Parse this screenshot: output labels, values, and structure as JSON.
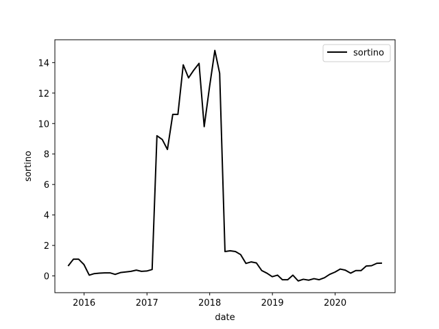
{
  "chart_data": {
    "type": "line",
    "xlabel": "date",
    "ylabel": "sortino",
    "xlim": [
      "2015-07-15",
      "2020-12-15"
    ],
    "ylim": [
      -1.1,
      15.5
    ],
    "xticks": [
      {
        "date": "2016-01-01",
        "label": "2016"
      },
      {
        "date": "2017-01-01",
        "label": "2017"
      },
      {
        "date": "2018-01-01",
        "label": "2018"
      },
      {
        "date": "2019-01-01",
        "label": "2019"
      },
      {
        "date": "2020-01-01",
        "label": "2020"
      }
    ],
    "yticks": [
      0,
      2,
      4,
      6,
      8,
      10,
      12,
      14
    ],
    "grid": false,
    "legend_position": "top-right",
    "line_color": "#000000",
    "series": [
      {
        "name": "sortino",
        "points": [
          {
            "x": "2015-09-30",
            "y": 0.65
          },
          {
            "x": "2015-10-31",
            "y": 1.1
          },
          {
            "x": "2015-11-30",
            "y": 1.1
          },
          {
            "x": "2015-12-31",
            "y": 0.75
          },
          {
            "x": "2016-01-31",
            "y": 0.05
          },
          {
            "x": "2016-02-29",
            "y": 0.15
          },
          {
            "x": "2016-03-31",
            "y": 0.18
          },
          {
            "x": "2016-04-30",
            "y": 0.2
          },
          {
            "x": "2016-05-31",
            "y": 0.2
          },
          {
            "x": "2016-06-30",
            "y": 0.1
          },
          {
            "x": "2016-07-31",
            "y": 0.22
          },
          {
            "x": "2016-08-31",
            "y": 0.26
          },
          {
            "x": "2016-09-30",
            "y": 0.3
          },
          {
            "x": "2016-10-31",
            "y": 0.38
          },
          {
            "x": "2016-11-30",
            "y": 0.3
          },
          {
            "x": "2016-12-31",
            "y": 0.32
          },
          {
            "x": "2017-01-31",
            "y": 0.42
          },
          {
            "x": "2017-02-28",
            "y": 9.2
          },
          {
            "x": "2017-03-31",
            "y": 8.95
          },
          {
            "x": "2017-04-30",
            "y": 8.3
          },
          {
            "x": "2017-05-31",
            "y": 10.6
          },
          {
            "x": "2017-06-30",
            "y": 10.6
          },
          {
            "x": "2017-07-31",
            "y": 13.85
          },
          {
            "x": "2017-08-31",
            "y": 13.0
          },
          {
            "x": "2017-09-30",
            "y": 13.5
          },
          {
            "x": "2017-10-31",
            "y": 13.95
          },
          {
            "x": "2017-11-30",
            "y": 9.8
          },
          {
            "x": "2017-12-31",
            "y": 12.4
          },
          {
            "x": "2018-01-31",
            "y": 14.8
          },
          {
            "x": "2018-02-28",
            "y": 13.3
          },
          {
            "x": "2018-03-31",
            "y": 1.6
          },
          {
            "x": "2018-04-30",
            "y": 1.65
          },
          {
            "x": "2018-05-31",
            "y": 1.6
          },
          {
            "x": "2018-06-30",
            "y": 1.4
          },
          {
            "x": "2018-07-31",
            "y": 0.82
          },
          {
            "x": "2018-08-31",
            "y": 0.92
          },
          {
            "x": "2018-09-30",
            "y": 0.85
          },
          {
            "x": "2018-10-31",
            "y": 0.35
          },
          {
            "x": "2018-11-30",
            "y": 0.18
          },
          {
            "x": "2018-12-31",
            "y": -0.05
          },
          {
            "x": "2019-01-31",
            "y": 0.05
          },
          {
            "x": "2019-02-28",
            "y": -0.25
          },
          {
            "x": "2019-03-31",
            "y": -0.25
          },
          {
            "x": "2019-04-30",
            "y": 0.05
          },
          {
            "x": "2019-05-31",
            "y": -0.33
          },
          {
            "x": "2019-06-30",
            "y": -0.22
          },
          {
            "x": "2019-07-31",
            "y": -0.28
          },
          {
            "x": "2019-08-31",
            "y": -0.18
          },
          {
            "x": "2019-09-30",
            "y": -0.25
          },
          {
            "x": "2019-10-31",
            "y": -0.12
          },
          {
            "x": "2019-11-30",
            "y": 0.1
          },
          {
            "x": "2019-12-31",
            "y": 0.25
          },
          {
            "x": "2020-01-31",
            "y": 0.45
          },
          {
            "x": "2020-02-29",
            "y": 0.38
          },
          {
            "x": "2020-03-31",
            "y": 0.18
          },
          {
            "x": "2020-04-30",
            "y": 0.35
          },
          {
            "x": "2020-05-31",
            "y": 0.35
          },
          {
            "x": "2020-06-30",
            "y": 0.65
          },
          {
            "x": "2020-07-31",
            "y": 0.67
          },
          {
            "x": "2020-08-31",
            "y": 0.83
          },
          {
            "x": "2020-09-30",
            "y": 0.84
          }
        ]
      }
    ]
  }
}
